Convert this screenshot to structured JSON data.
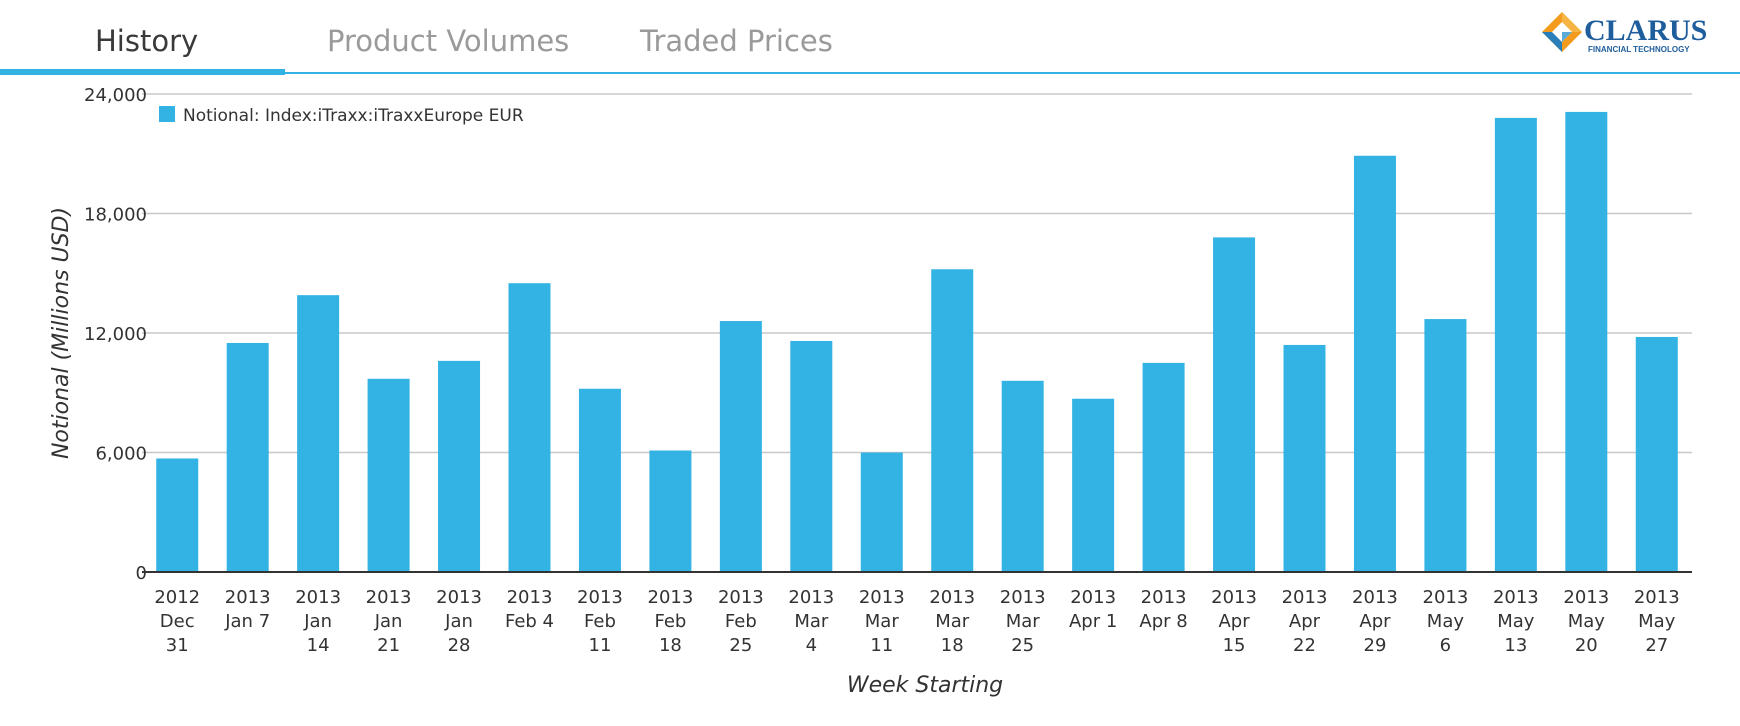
{
  "tabs": [
    {
      "label": "History",
      "active": true
    },
    {
      "label": "Product Volumes",
      "active": false
    },
    {
      "label": "Traded Prices",
      "active": false
    }
  ],
  "logo": {
    "name": "CLARUS",
    "tagline": "FINANCIAL TECHNOLOGY"
  },
  "colors": {
    "accent": "#33b3e3",
    "bar": "#33b3e3",
    "grid": "#c8c8c8",
    "axis": "#333333"
  },
  "chart_data": {
    "type": "bar",
    "xlabel": "Week Starting",
    "ylabel": "Notional (Millions USD)",
    "ylim": [
      0,
      24000
    ],
    "yticks": [
      "0",
      "6,000",
      "12,000",
      "18,000",
      "24,000"
    ],
    "grid": true,
    "legend_position": "top-left",
    "categories": [
      [
        "2012",
        "Dec",
        "31"
      ],
      [
        "2013",
        "Jan 7"
      ],
      [
        "2013",
        "Jan",
        "14"
      ],
      [
        "2013",
        "Jan",
        "21"
      ],
      [
        "2013",
        "Jan",
        "28"
      ],
      [
        "2013",
        "Feb 4"
      ],
      [
        "2013",
        "Feb",
        "11"
      ],
      [
        "2013",
        "Feb",
        "18"
      ],
      [
        "2013",
        "Feb",
        "25"
      ],
      [
        "2013",
        "Mar",
        "4"
      ],
      [
        "2013",
        "Mar",
        "11"
      ],
      [
        "2013",
        "Mar",
        "18"
      ],
      [
        "2013",
        "Mar",
        "25"
      ],
      [
        "2013",
        "Apr 1"
      ],
      [
        "2013",
        "Apr 8"
      ],
      [
        "2013",
        "Apr",
        "15"
      ],
      [
        "2013",
        "Apr",
        "22"
      ],
      [
        "2013",
        "Apr",
        "29"
      ],
      [
        "2013",
        "May",
        "6"
      ],
      [
        "2013",
        "May",
        "13"
      ],
      [
        "2013",
        "May",
        "20"
      ],
      [
        "2013",
        "May",
        "27"
      ]
    ],
    "series": [
      {
        "name": "Notional: Index:iTraxx:iTraxxEurope EUR",
        "values": [
          5700,
          11500,
          13900,
          9700,
          10600,
          14500,
          9200,
          6100,
          12600,
          11600,
          6000,
          15200,
          9600,
          8700,
          10500,
          16800,
          11400,
          20900,
          12700,
          22800,
          23100,
          11800
        ]
      }
    ]
  }
}
